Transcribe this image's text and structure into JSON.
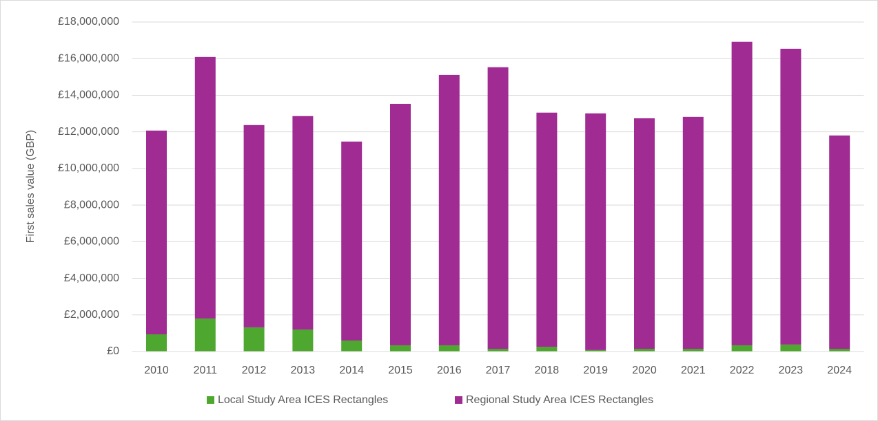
{
  "chart_data": {
    "type": "stacked_bar",
    "y_axis_label": "First sales value (GBP)",
    "categories": [
      "2010",
      "2011",
      "2012",
      "2013",
      "2014",
      "2015",
      "2016",
      "2017",
      "2018",
      "2019",
      "2020",
      "2021",
      "2022",
      "2023",
      "2024"
    ],
    "series": [
      {
        "name": "Local Study Area ICES Rectangles",
        "color": "#4ea72e",
        "values": [
          940000,
          1800000,
          1320000,
          1200000,
          600000,
          340000,
          340000,
          150000,
          260000,
          80000,
          150000,
          150000,
          340000,
          380000,
          150000
        ]
      },
      {
        "name": "Regional Study Area ICES Rectangles",
        "color": "#a02b93",
        "values": [
          11130000,
          14290000,
          11050000,
          11660000,
          10870000,
          13190000,
          14770000,
          15380000,
          12790000,
          12930000,
          12590000,
          12670000,
          16580000,
          16160000,
          11650000
        ]
      }
    ],
    "ylim": [
      0,
      18000000
    ],
    "yticks": [
      {
        "value": 0,
        "label": "£0"
      },
      {
        "value": 2000000,
        "label": "£2,000,000"
      },
      {
        "value": 4000000,
        "label": "£4,000,000"
      },
      {
        "value": 6000000,
        "label": "£6,000,000"
      },
      {
        "value": 8000000,
        "label": "£8,000,000"
      },
      {
        "value": 10000000,
        "label": "£10,000,000"
      },
      {
        "value": 12000000,
        "label": "£12,000,000"
      },
      {
        "value": 14000000,
        "label": "£14,000,000"
      },
      {
        "value": 16000000,
        "label": "£16,000,000"
      },
      {
        "value": 18000000,
        "label": "£18,000,000"
      }
    ],
    "grid": true,
    "legend": "bottom"
  }
}
